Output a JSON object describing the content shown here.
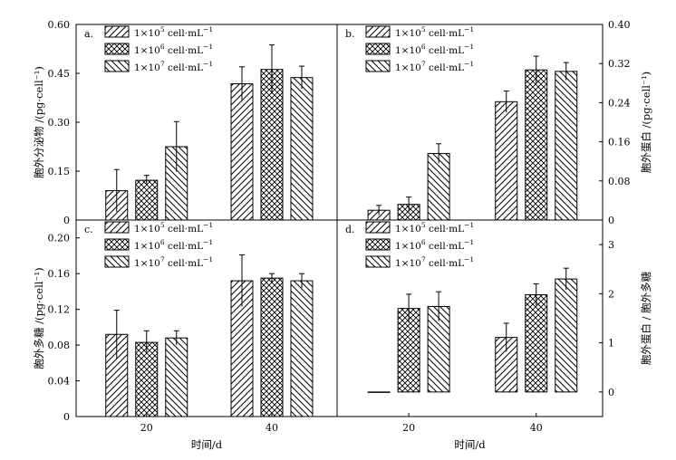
{
  "figure": {
    "xlabel": "时间/d",
    "categories": [
      "20",
      "40"
    ]
  },
  "legend": {
    "items": [
      {
        "base": "1×10",
        "exp": "5",
        "unit": " cell·mL",
        "unit_exp": "−1",
        "pattern": "diag-right"
      },
      {
        "base": "1×10",
        "exp": "6",
        "unit": " cell·mL",
        "unit_exp": "−1",
        "pattern": "cross"
      },
      {
        "base": "1×10",
        "exp": "7",
        "unit": " cell·mL",
        "unit_exp": "−1",
        "pattern": "diag-left"
      }
    ]
  },
  "chart_data": [
    {
      "panel": "a.",
      "type": "bar",
      "ylabel": "胞外分泌物 /(pg·cell⁻¹)",
      "ylim": [
        0,
        0.6
      ],
      "yticks": [
        "0",
        "0.15",
        "0.30",
        "0.45",
        "0.60"
      ],
      "tick_values": [
        0,
        0.15,
        0.3,
        0.45,
        0.6
      ],
      "categories": [
        "20",
        "40"
      ],
      "series": [
        {
          "name": "1×10^5 cell·mL^-1",
          "values": [
            0.09,
            0.418
          ],
          "errors": [
            0.065,
            0.052
          ]
        },
        {
          "name": "1×10^6 cell·mL^-1",
          "values": [
            0.122,
            0.462
          ],
          "errors": [
            0.015,
            0.075
          ]
        },
        {
          "name": "1×10^7 cell·mL^-1",
          "values": [
            0.225,
            0.437
          ],
          "errors": [
            0.077,
            0.035
          ]
        }
      ]
    },
    {
      "panel": "b.",
      "type": "bar",
      "ylabel": "胞外蛋白 /(pg·cell⁻¹)",
      "ylim": [
        0,
        0.4
      ],
      "yticks": [
        "0",
        "0.08",
        "0.16",
        "0.24",
        "0.32",
        "0.40"
      ],
      "tick_values": [
        0,
        0.08,
        0.16,
        0.24,
        0.32,
        0.4
      ],
      "categories": [
        "20",
        "40"
      ],
      "series": [
        {
          "name": "1×10^5 cell·mL^-1",
          "values": [
            0.02,
            0.242
          ],
          "errors": [
            0.01,
            0.022
          ]
        },
        {
          "name": "1×10^6 cell·mL^-1",
          "values": [
            0.032,
            0.307
          ],
          "errors": [
            0.015,
            0.028
          ]
        },
        {
          "name": "1×10^7 cell·mL^-1",
          "values": [
            0.136,
            0.304
          ],
          "errors": [
            0.02,
            0.018
          ]
        }
      ]
    },
    {
      "panel": "c.",
      "type": "bar",
      "ylabel": "胞外多糖 /(pg·cell⁻¹)",
      "ylim": [
        0,
        0.22
      ],
      "yticks": [
        "0",
        "0.04",
        "0.08",
        "0.12",
        "0.16",
        "0.20"
      ],
      "tick_values": [
        0,
        0.04,
        0.08,
        0.12,
        0.16,
        0.2
      ],
      "categories": [
        "20",
        "40"
      ],
      "series": [
        {
          "name": "1×10^5 cell·mL^-1",
          "values": [
            0.092,
            0.152
          ],
          "errors": [
            0.027,
            0.029
          ]
        },
        {
          "name": "1×10^6 cell·mL^-1",
          "values": [
            0.083,
            0.155
          ],
          "errors": [
            0.013,
            0.005
          ]
        },
        {
          "name": "1×10^7 cell·mL^-1",
          "values": [
            0.088,
            0.152
          ],
          "errors": [
            0.008,
            0.008
          ]
        }
      ]
    },
    {
      "panel": "d.",
      "type": "bar",
      "ylabel": "胞外蛋白 / 胞外多糖",
      "ylim": [
        -0.5,
        3.5
      ],
      "yticks": [
        "0",
        "1",
        "2",
        "3"
      ],
      "tick_values": [
        0,
        1,
        2,
        3
      ],
      "categories": [
        "20",
        "40"
      ],
      "series": [
        {
          "name": "1×10^5 cell·mL^-1",
          "values": [
            0.0,
            1.11
          ],
          "errors": [
            0.0,
            0.29
          ]
        },
        {
          "name": "1×10^6 cell·mL^-1",
          "values": [
            1.7,
            1.98
          ],
          "errors": [
            0.29,
            0.22
          ]
        },
        {
          "name": "1×10^7 cell·mL^-1",
          "values": [
            1.74,
            2.3
          ],
          "errors": [
            0.3,
            0.22
          ]
        }
      ]
    }
  ]
}
